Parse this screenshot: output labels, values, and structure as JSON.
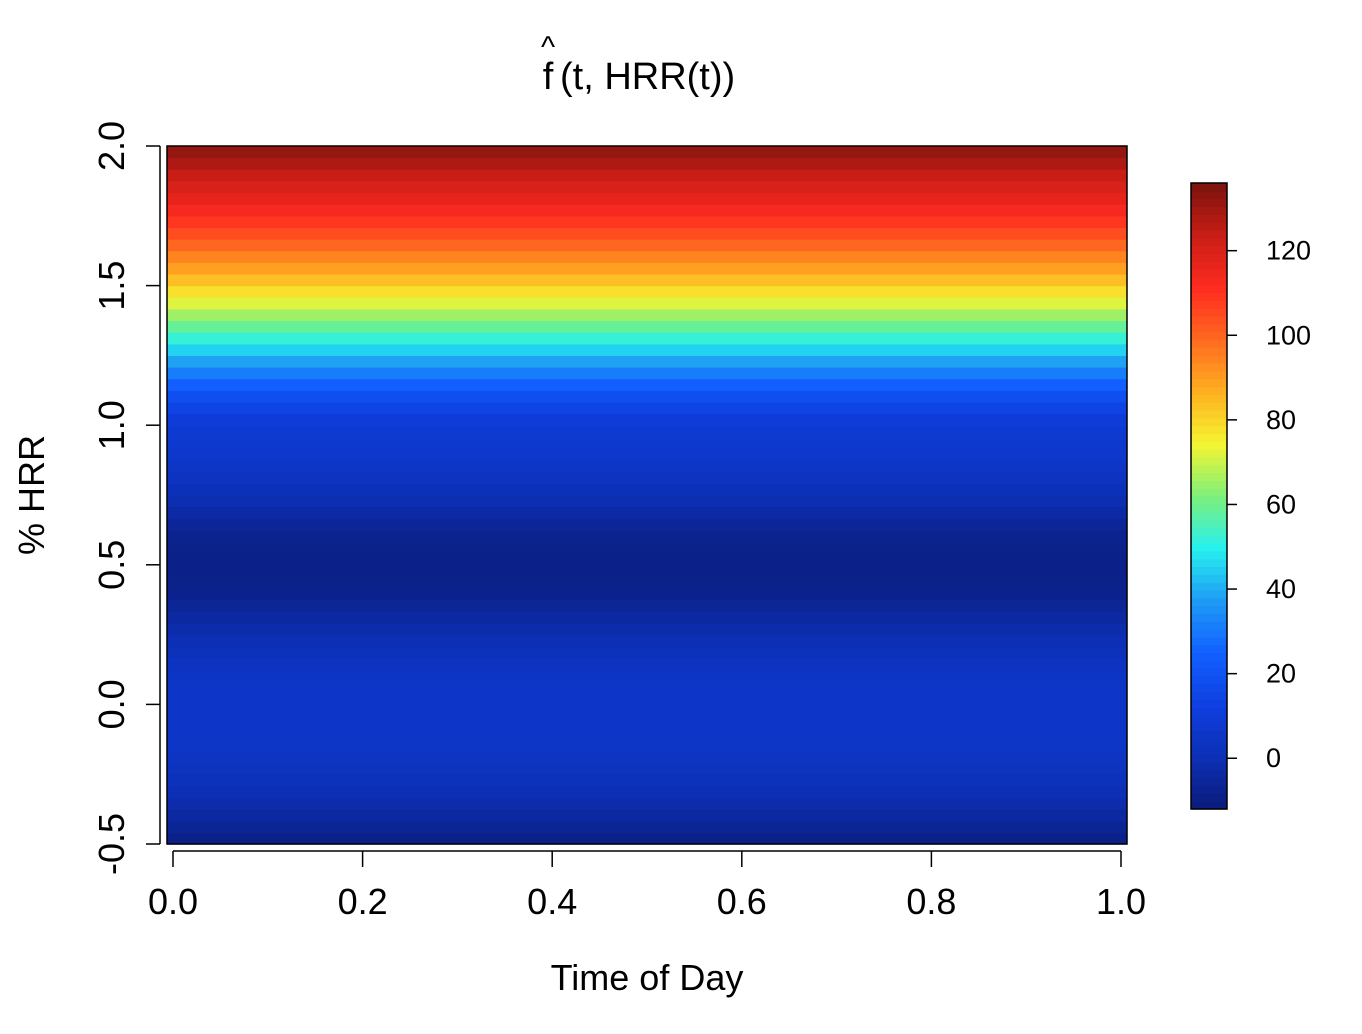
{
  "chart_data": {
    "type": "heatmap",
    "title": {
      "hat": "^",
      "f": "f",
      "args": "(t, HRR(t))"
    },
    "xlabel": "Time of Day",
    "ylabel": "% HRR",
    "xlim": [
      0.0,
      1.0
    ],
    "ylim": [
      -0.5,
      2.0
    ],
    "x_ticks": [
      "0.0",
      "0.2",
      "0.4",
      "0.6",
      "0.8",
      "1.0"
    ],
    "y_ticks": [
      "-0.5",
      "0.0",
      "0.5",
      "1.0",
      "1.5",
      "2.0"
    ],
    "colorbar": {
      "range": [
        -12,
        136
      ],
      "ticks": [
        "0",
        "20",
        "40",
        "60",
        "80",
        "100",
        "120"
      ]
    },
    "profile_note": "value depends only on % HRR (constant across time of day)",
    "profile": {
      "hrr": [
        -0.5,
        -0.4,
        -0.3,
        -0.2,
        -0.1,
        0.0,
        0.1,
        0.2,
        0.3,
        0.4,
        0.5,
        0.6,
        0.7,
        0.8,
        0.9,
        1.0,
        1.05,
        1.1,
        1.15,
        1.2,
        1.25,
        1.3,
        1.35,
        1.4,
        1.45,
        1.5,
        1.55,
        1.6,
        1.65,
        1.7,
        1.75,
        1.8,
        1.85,
        1.9,
        1.95,
        2.0
      ],
      "value": [
        -10,
        -4,
        1,
        4,
        6,
        6,
        5,
        2,
        -3,
        -8,
        -9,
        -8,
        -2,
        3,
        7,
        9,
        13,
        18,
        25,
        33,
        42,
        50,
        58,
        66,
        74,
        81,
        88,
        94,
        100,
        106,
        111,
        116,
        120,
        124,
        129,
        134
      ]
    },
    "colormap": [
      "#0b1c7a",
      "#0c2fb5",
      "#0f3fe0",
      "#1260ff",
      "#1e9bf5",
      "#26f0ee",
      "#7ef07a",
      "#f5f532",
      "#ffb020",
      "#ff6a20",
      "#ff2a20",
      "#c81e16",
      "#7a130d"
    ]
  }
}
